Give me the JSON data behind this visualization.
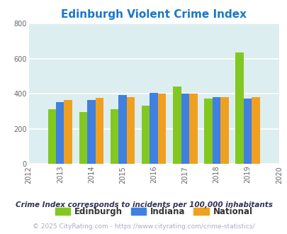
{
  "title": "Edinburgh Violent Crime Index",
  "years": [
    2013,
    2014,
    2015,
    2016,
    2017,
    2018,
    2019
  ],
  "edinburgh": [
    310,
    295,
    310,
    330,
    440,
    370,
    635
  ],
  "indiana": [
    350,
    365,
    390,
    405,
    400,
    378,
    370
  ],
  "national": [
    365,
    375,
    380,
    398,
    398,
    378,
    378
  ],
  "color_edinburgh": "#82c820",
  "color_indiana": "#4080e0",
  "color_national": "#f0a020",
  "xlim": [
    2012,
    2020
  ],
  "ylim": [
    0,
    800
  ],
  "yticks": [
    0,
    200,
    400,
    600,
    800
  ],
  "background_color": "#ddeef0",
  "grid_color": "#ffffff",
  "bar_width": 0.26,
  "footnote1": "Crime Index corresponds to incidents per 100,000 inhabitants",
  "footnote2": "© 2025 CityRating.com - https://www.cityrating.com/crime-statistics/",
  "legend_labels": [
    "Edinburgh",
    "Indiana",
    "National"
  ],
  "title_color": "#1878c8",
  "title_fontsize": 11,
  "legend_fontsize": 8.5,
  "footnote1_fontsize": 7.5,
  "footnote2_fontsize": 6.5,
  "tick_fontsize": 7,
  "footnote1_color": "#333355",
  "footnote2_color": "#aaaacc"
}
